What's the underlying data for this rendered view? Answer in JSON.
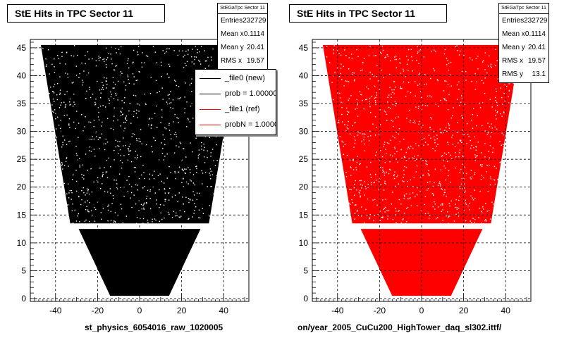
{
  "panels": [
    {
      "title": "StE Hits in TPC Sector 11",
      "stats": {
        "name": "StEGaTpc Sector 11",
        "rows": [
          {
            "label": "Entries",
            "value": "232729"
          },
          {
            "label": "Mean x",
            "value": "0.1114"
          },
          {
            "label": "Mean y",
            "value": "20.41"
          },
          {
            "label": "RMS x",
            "value": "19.57"
          }
        ]
      },
      "xtitle": "st_physics_6054016_raw_1020005",
      "color": "#000000"
    },
    {
      "title": "StE Hits in TPC Sector 11",
      "stats": {
        "name": "StEGaTpc Sector 11",
        "rows": [
          {
            "label": "Entries",
            "value": "232729"
          },
          {
            "label": "Mean x",
            "value": "0.1114"
          },
          {
            "label": "Mean y",
            "value": "20.41"
          },
          {
            "label": "RMS x",
            "value": "19.57"
          },
          {
            "label": "RMS y",
            "value": "13.1"
          }
        ]
      },
      "xtitle": "on/year_2005_CuCu200_HighTower_daq_sl302.ittf/",
      "color": "#ff0000"
    }
  ],
  "legend": {
    "entries": [
      {
        "label": "_file0 (new)",
        "color": "#000000"
      },
      {
        "label": "prob = 1.000000",
        "color": "#000000"
      },
      {
        "label": "_file1 (ref)",
        "color": "#ff0000"
      },
      {
        "label": "probN = 1.000000",
        "color": "#ff0000"
      }
    ]
  },
  "chart_data": [
    {
      "type": "scatter",
      "title": "StE Hits in TPC Sector 11",
      "xlabel": "st_physics_6054016_raw_1020005",
      "xlim": [
        -52,
        52
      ],
      "ylim": [
        -0.5,
        46.5
      ],
      "xticks": [
        -40,
        -20,
        0,
        20,
        40
      ],
      "yticks": [
        0,
        5,
        10,
        15,
        20,
        25,
        30,
        35,
        40,
        45
      ],
      "grid": true,
      "series": [
        {
          "name": "_file0 (new)",
          "color": "#000000"
        }
      ],
      "lower_region": {
        "y": [
          0.5,
          12.5
        ],
        "x_halfwidth_at_bottom": 14,
        "x_halfwidth_at_top": 29
      },
      "upper_region": {
        "y": [
          13.5,
          45.5
        ],
        "x_halfwidth_at_bottom": 33,
        "x_halfwidth_at_top": 47
      }
    },
    {
      "type": "scatter",
      "title": "StE Hits in TPC Sector 11",
      "xlabel": "on/year_2005_CuCu200_HighTower_daq_sl302.ittf/",
      "xlim": [
        -52,
        52
      ],
      "ylim": [
        -0.5,
        46.5
      ],
      "xticks": [
        -40,
        -20,
        0,
        20,
        40
      ],
      "yticks": [
        0,
        5,
        10,
        15,
        20,
        25,
        30,
        35,
        40,
        45
      ],
      "grid": true,
      "series": [
        {
          "name": "_file1 (ref)",
          "color": "#ff0000"
        }
      ],
      "lower_region": {
        "y": [
          0.5,
          12.5
        ],
        "x_halfwidth_at_bottom": 14,
        "x_halfwidth_at_top": 29
      },
      "upper_region": {
        "y": [
          13.5,
          45.5
        ],
        "x_halfwidth_at_bottom": 33,
        "x_halfwidth_at_top": 47
      }
    }
  ]
}
